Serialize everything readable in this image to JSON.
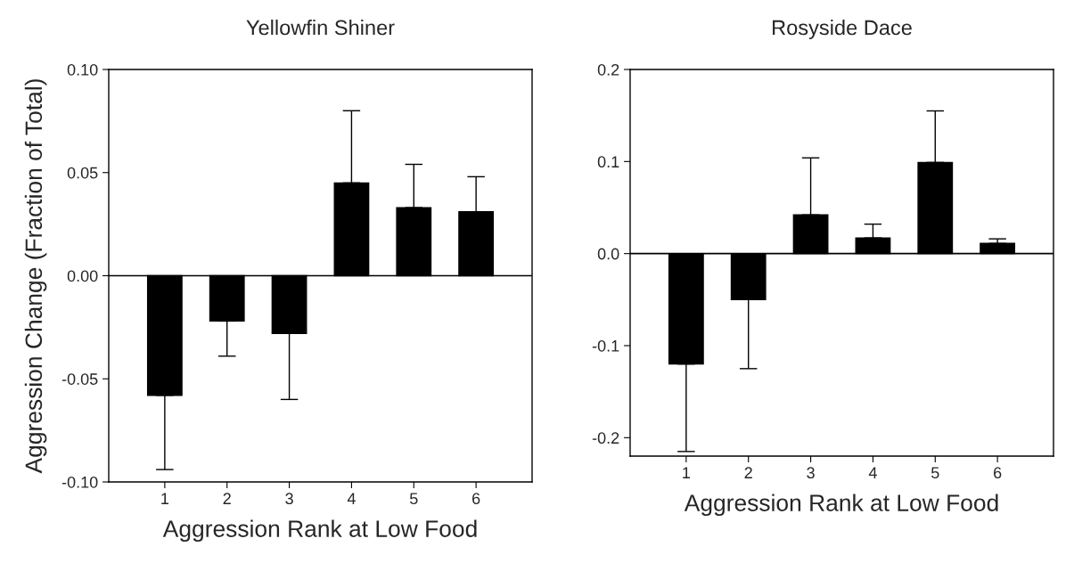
{
  "chart_data": [
    {
      "type": "bar",
      "title": "Yellowfin Shiner",
      "xlabel": "Aggression Rank at Low Food",
      "ylabel": "Aggression Change (Fraction of Total)",
      "categories": [
        "1",
        "2",
        "3",
        "4",
        "5",
        "6"
      ],
      "values": [
        -0.058,
        -0.022,
        -0.028,
        0.045,
        0.033,
        0.031
      ],
      "color": "#000000",
      "errors": [
        [
          -0.094,
          -0.058
        ],
        [
          -0.039,
          -0.022
        ],
        [
          -0.06,
          -0.028
        ],
        [
          0.045,
          0.08
        ],
        [
          0.033,
          0.054
        ],
        [
          0.031,
          0.048
        ]
      ],
      "ylim": [
        -0.1,
        0.1
      ],
      "yticks": [
        {
          "value": -0.1,
          "label": "-0.10"
        },
        -0.05,
        {
          "value": 0,
          "label": "0.00"
        },
        0.05,
        {
          "value": 0.1,
          "label": "0.10"
        }
      ],
      "ref_lines": [
        {
          "axis": "y",
          "value": 0,
          "color": "#000000"
        }
      ],
      "grid": false,
      "legend": false
    },
    {
      "type": "bar",
      "title": "Rosyside Dace",
      "xlabel": "Aggression Rank at Low Food",
      "categories": [
        "1",
        "2",
        "3",
        "4",
        "5",
        "6"
      ],
      "values": [
        -0.12,
        -0.05,
        0.042,
        0.017,
        0.099,
        0.011
      ],
      "color": "#000000",
      "errors": [
        [
          -0.215,
          -0.12
        ],
        [
          -0.125,
          -0.05
        ],
        [
          0.042,
          0.104
        ],
        [
          0.017,
          0.032
        ],
        [
          0.099,
          0.155
        ],
        [
          0.011,
          0.016
        ]
      ],
      "ylim": [
        -0.22,
        0.2
      ],
      "yticks": [
        -0.2,
        -0.1,
        {
          "value": 0,
          "label": "0.0"
        },
        0.1,
        0.2
      ],
      "ref_lines": [
        {
          "axis": "y",
          "value": 0,
          "color": "#000000"
        }
      ],
      "grid": false,
      "legend": false
    }
  ]
}
